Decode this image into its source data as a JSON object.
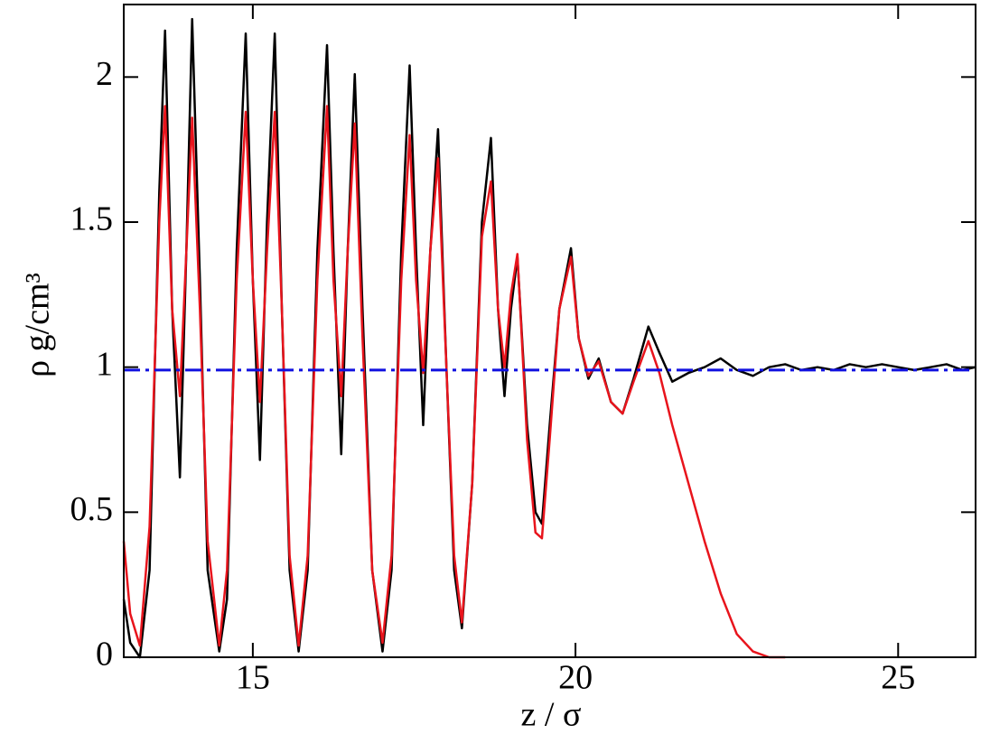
{
  "chart_data": {
    "type": "line",
    "x_label": "z / σ",
    "y_label": "ρ g/cm³",
    "xlim": [
      13,
      26.2
    ],
    "ylim": [
      0,
      2.25
    ],
    "xticks": [
      15,
      20,
      25
    ],
    "yticks": [
      0,
      0.5,
      1,
      1.5,
      2
    ],
    "x": [
      13.0,
      13.1,
      13.25,
      13.4,
      13.55,
      13.64,
      13.75,
      13.87,
      13.97,
      14.06,
      14.18,
      14.3,
      14.48,
      14.6,
      14.75,
      14.89,
      15.0,
      15.11,
      15.22,
      15.34,
      15.45,
      15.57,
      15.71,
      15.85,
      16.0,
      16.15,
      16.25,
      16.37,
      16.47,
      16.58,
      16.7,
      16.85,
      17.01,
      17.15,
      17.3,
      17.43,
      17.53,
      17.64,
      17.75,
      17.87,
      18.0,
      18.12,
      18.24,
      18.4,
      18.55,
      18.69,
      18.8,
      18.9,
      19.0,
      19.1,
      19.25,
      19.38,
      19.48,
      19.6,
      19.75,
      19.93,
      20.05,
      20.2,
      20.36,
      20.55,
      20.73,
      20.9,
      21.13,
      21.3,
      21.5,
      21.75,
      22.0,
      22.25,
      22.5,
      22.75,
      23.0,
      23.25,
      23.5,
      23.75,
      24.0,
      24.25,
      24.5,
      24.75,
      25.0,
      25.25,
      25.5,
      25.75,
      26.0,
      26.2
    ],
    "series": [
      {
        "color": "#000000",
        "values": [
          0.2,
          0.05,
          0,
          0.3,
          1.6,
          2.16,
          1.2,
          0.62,
          1.4,
          2.2,
          1.3,
          0.3,
          0.02,
          0.2,
          1.4,
          2.15,
          1.3,
          0.68,
          1.5,
          2.15,
          1.2,
          0.3,
          0.02,
          0.3,
          1.4,
          2.11,
          1.4,
          0.7,
          1.4,
          2.01,
          1.2,
          0.3,
          0.02,
          0.3,
          1.4,
          2.04,
          1.4,
          0.8,
          1.4,
          1.82,
          1.0,
          0.3,
          0.1,
          0.6,
          1.5,
          1.79,
          1.2,
          0.9,
          1.2,
          1.38,
          0.8,
          0.5,
          0.46,
          0.8,
          1.2,
          1.41,
          1.1,
          0.96,
          1.03,
          0.88,
          0.84,
          0.96,
          1.14,
          1.05,
          0.95,
          0.98,
          1.0,
          1.03,
          0.99,
          0.97,
          1.0,
          1.01,
          0.99,
          1.0,
          0.99,
          1.01,
          1.0,
          1.01,
          1.0,
          0.99,
          1.0,
          1.01,
          0.99,
          1.0
        ]
      },
      {
        "color": "#e8141c",
        "values": [
          0.4,
          0.15,
          0.04,
          0.45,
          1.5,
          1.9,
          1.2,
          0.9,
          1.4,
          1.86,
          1.2,
          0.4,
          0.04,
          0.3,
          1.3,
          1.88,
          1.3,
          0.88,
          1.4,
          1.88,
          1.2,
          0.35,
          0.04,
          0.35,
          1.3,
          1.9,
          1.3,
          0.9,
          1.4,
          1.84,
          1.1,
          0.3,
          0.05,
          0.35,
          1.3,
          1.8,
          1.3,
          0.98,
          1.4,
          1.72,
          1.0,
          0.35,
          0.12,
          0.6,
          1.45,
          1.64,
          1.2,
          1.0,
          1.25,
          1.39,
          0.75,
          0.43,
          0.41,
          0.75,
          1.2,
          1.38,
          1.1,
          0.97,
          1.02,
          0.88,
          0.84,
          0.95,
          1.09,
          0.98,
          0.8,
          0.6,
          0.4,
          0.22,
          0.08,
          0.02,
          0.0,
          0.0,
          null,
          null,
          null,
          null,
          null,
          null,
          null,
          null,
          null,
          null,
          null,
          null
        ]
      },
      {
        "color": "#1010e0",
        "dash": "dashdot",
        "x": [
          13,
          26.2
        ],
        "values": [
          0.99,
          0.99
        ]
      }
    ]
  }
}
